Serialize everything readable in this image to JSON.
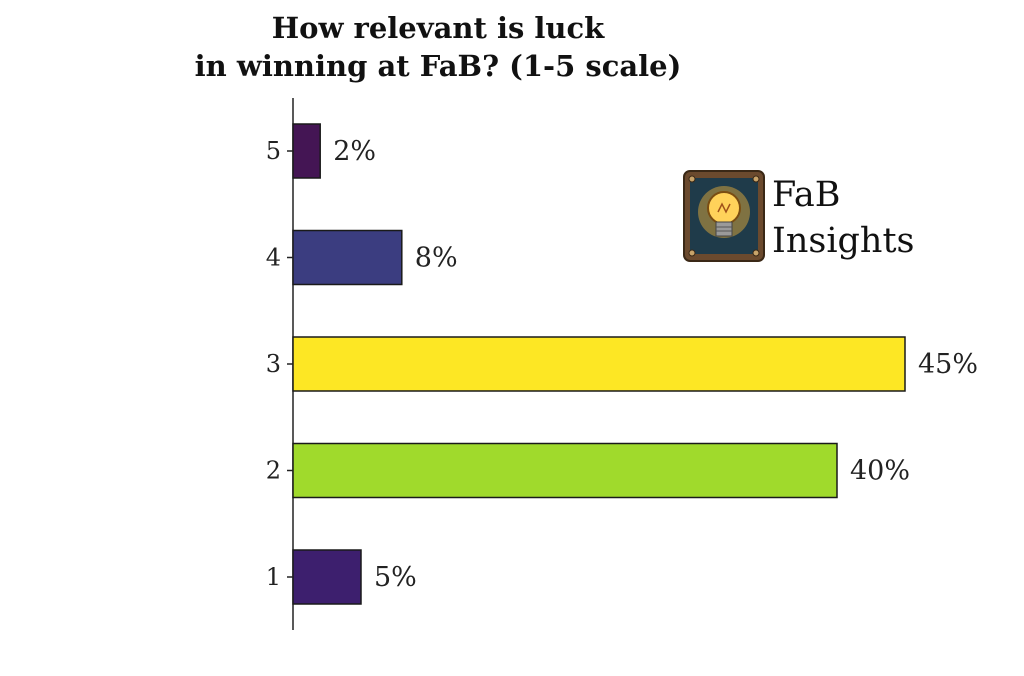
{
  "chart_data": {
    "type": "bar",
    "orientation": "horizontal",
    "title": [
      "How relevant is luck",
      "in winning at FaB? (1-5 scale)"
    ],
    "categories": [
      "1",
      "2",
      "3",
      "4",
      "5"
    ],
    "values": [
      5,
      40,
      45,
      8,
      2
    ],
    "value_labels": [
      "5%",
      "40%",
      "45%",
      "8%",
      "2%"
    ],
    "bar_colors": [
      "#3d1f6e",
      "#a0da2c",
      "#fde724",
      "#3b3d80",
      "#441554"
    ],
    "xlim": [
      0,
      45
    ],
    "grid": false
  },
  "logo": {
    "icon": "lightbulb-icon",
    "lines": [
      "FaB",
      "Insights"
    ]
  }
}
